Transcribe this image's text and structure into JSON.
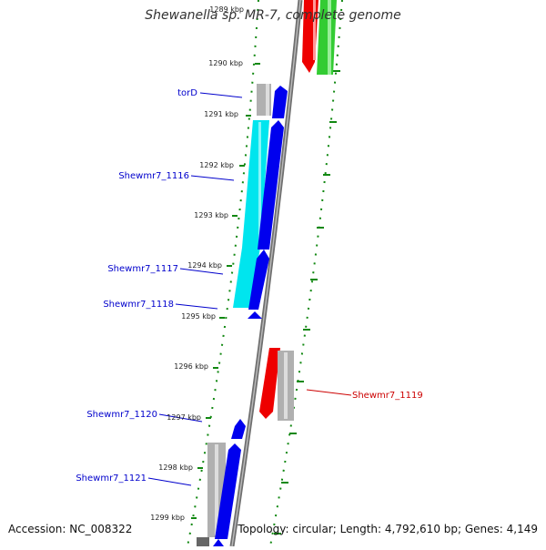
{
  "map": {
    "title": "Shewanella sp. MR-7, complete genome",
    "accession_text": "Accession: NC_008322",
    "summary_text": "Topology: circular; Length: 4,792,610 bp; Genes: 4,149"
  },
  "ticks": [
    "1289 kbp",
    "1290 kbp",
    "1291 kbp",
    "1292 kbp",
    "1293 kbp",
    "1294 kbp",
    "1295 kbp",
    "1296 kbp",
    "1297 kbp",
    "1298 kbp",
    "1299 kbp"
  ],
  "gene_labels": {
    "torD": "torD",
    "shewmr7_1116": "Shewmr7_1116",
    "shewmr7_1117": "Shewmr7_1117",
    "shewmr7_1118": "Shewmr7_1118",
    "shewmr7_1119": "Shewmr7_1119",
    "shewmr7_1120": "Shewmr7_1120",
    "shewmr7_1121": "Shewmr7_1121"
  },
  "colors": {
    "forward_gene": "#0000ee",
    "reverse_gene": "#ee0000",
    "cds_cyan": "#00e5ee",
    "grey_track": "#b0b0b0",
    "green_track": "#33cc33",
    "tick_green": "#118811",
    "backbone": "#777777"
  }
}
